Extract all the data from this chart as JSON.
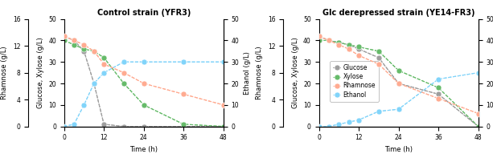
{
  "left_chart": {
    "title": "Control strain (YFR3)",
    "glucose_x": [
      0,
      3,
      6,
      9,
      12,
      18,
      24,
      36,
      48
    ],
    "glucose_y": [
      42,
      40,
      35,
      20,
      1,
      0,
      0,
      0,
      0
    ],
    "xylose_x": [
      0,
      3,
      6,
      9,
      12,
      18,
      24,
      36,
      48
    ],
    "xylose_y": [
      40,
      38,
      36,
      35,
      32,
      20,
      10,
      1,
      0
    ],
    "rhamnose_x": [
      0,
      3,
      6,
      9,
      12,
      18,
      24,
      36,
      48
    ],
    "rhamnose_y": [
      42,
      40,
      38,
      35,
      29,
      25,
      20,
      15,
      10
    ],
    "ethanol_x": [
      0,
      3,
      6,
      9,
      12,
      18,
      24,
      36,
      48
    ],
    "ethanol_y": [
      0,
      1,
      10,
      20,
      25,
      30,
      30,
      30,
      30
    ]
  },
  "right_chart": {
    "title": "Glc derepressed strain (YE14-FR3)",
    "glucose_x": [
      0,
      3,
      6,
      9,
      12,
      18,
      24,
      36,
      48
    ],
    "glucose_y": [
      42,
      40,
      39,
      38,
      36,
      32,
      20,
      15,
      0
    ],
    "xylose_x": [
      0,
      3,
      6,
      9,
      12,
      18,
      24,
      36,
      48
    ],
    "xylose_y": [
      40,
      40,
      39,
      38,
      37,
      35,
      26,
      18,
      0
    ],
    "rhamnose_x": [
      0,
      3,
      6,
      9,
      12,
      18,
      24,
      36,
      48
    ],
    "rhamnose_y": [
      42,
      40,
      38,
      36,
      33,
      29,
      20,
      13,
      6
    ],
    "ethanol_x": [
      0,
      3,
      6,
      9,
      12,
      18,
      24,
      36,
      48
    ],
    "ethanol_y": [
      0,
      0,
      1,
      2,
      3,
      7,
      8,
      22,
      25
    ]
  },
  "color_glucose": "#9E9E9E",
  "color_xylose": "#66BB6A",
  "color_rhamnose": "#FFAB91",
  "color_ethanol": "#81D4FA",
  "ylim_gxy": [
    0,
    50
  ],
  "ylim_rha": [
    0,
    16
  ],
  "ylim_eth": [
    0,
    50
  ],
  "xlim": [
    0,
    48
  ],
  "xticks": [
    0,
    12,
    24,
    36,
    48
  ],
  "yticks_gxy": [
    0,
    10,
    20,
    30,
    40,
    50
  ],
  "yticks_rha": [
    0,
    4,
    8,
    12,
    16
  ],
  "yticks_eth": [
    0,
    10,
    20,
    30,
    40,
    50
  ],
  "xlabel": "Time (h)",
  "ylabel_rha": "Rhamnose (g/L)",
  "ylabel_gxy": "Glucose, Xylose (g/L)",
  "ylabel_eth": "Ethanol (g/L)",
  "legend_labels": [
    "Glucose",
    "Xylose",
    "Rhamnose",
    "Ethanol"
  ],
  "marker_size": 5,
  "linewidth": 0.8,
  "title_fontsize": 7,
  "label_fontsize": 6,
  "tick_fontsize": 5.5,
  "legend_fontsize": 5.5
}
